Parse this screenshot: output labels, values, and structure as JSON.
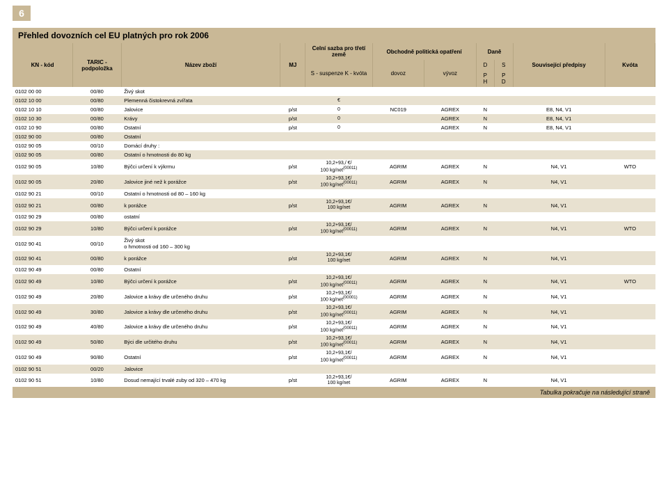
{
  "page_number": "6",
  "title": "Přehled dovozních cel EU platných pro rok 2006",
  "footer": "Tabulka pokračuje na následující straně",
  "headers": {
    "kn_kod": "KN - kód",
    "taric": "TARIC - podpoložka",
    "nazev": "Název zboží",
    "mj": "MJ",
    "sazba_group": "Celní sazba pro třetí země",
    "sazba_sub": "S - suspenze\nK - kvóta",
    "opatreni_group": "Obchodně politická opatření",
    "dovoz": "dovoz",
    "vyvoz": "vývoz",
    "dane": "Daně",
    "d": "D",
    "s": "S",
    "p1": "P",
    "p2": "P",
    "h": "H",
    "d2": "D",
    "predpisy": "Související předpisy",
    "kvota": "Kvóta"
  },
  "euro": "€",
  "rows": [
    {
      "alt": 0,
      "kn": "0102 00 00",
      "tar": "00/80",
      "naz": "Živý skot",
      "mj": "",
      "rate": "",
      "dov": "",
      "vyv": "",
      "da": "",
      "sa": "",
      "pre": "",
      "kv": ""
    },
    {
      "alt": 1,
      "kn": "0102 10 00",
      "tar": "00/80",
      "naz": "Plemenná čistokrevná zvířata",
      "mj": "",
      "rate": "€",
      "dov": "",
      "vyv": "",
      "da": "",
      "sa": "",
      "pre": "",
      "kv": ""
    },
    {
      "alt": 0,
      "kn": "0102 10 10",
      "tar": "00/80",
      "naz": "Jalovice",
      "mj": "p/st",
      "rate": "0",
      "dov": "NC019",
      "vyv": "AGREX",
      "da": "N",
      "sa": "",
      "pre": "E8, N4, V1",
      "kv": ""
    },
    {
      "alt": 1,
      "kn": "0102 10 30",
      "tar": "00/80",
      "naz": "Krávy",
      "mj": "p/st",
      "rate": "0",
      "dov": "",
      "vyv": "AGREX",
      "da": "N",
      "sa": "",
      "pre": "E8, N4, V1",
      "kv": ""
    },
    {
      "alt": 0,
      "kn": "0102 10 90",
      "tar": "00/80",
      "naz": "Ostatní",
      "mj": "p/st",
      "rate": "0",
      "dov": "",
      "vyv": "AGREX",
      "da": "N",
      "sa": "",
      "pre": "E8, N4, V1",
      "kv": ""
    },
    {
      "alt": 1,
      "kn": "0102 90 00",
      "tar": "00/80",
      "naz": "Ostatní",
      "mj": "",
      "rate": "",
      "dov": "",
      "vyv": "",
      "da": "",
      "sa": "",
      "pre": "",
      "kv": ""
    },
    {
      "alt": 0,
      "kn": "0102 90 05",
      "tar": "00/10",
      "naz": "Domácí druhy :",
      "mj": "",
      "rate": "",
      "dov": "",
      "vyv": "",
      "da": "",
      "sa": "",
      "pre": "",
      "kv": ""
    },
    {
      "alt": 1,
      "kn": "0102 90 05",
      "tar": "00/80",
      "naz": "Ostatní o hmotnosti do 80 kg",
      "mj": "",
      "rate": "",
      "dov": "",
      "vyv": "",
      "da": "",
      "sa": "",
      "pre": "",
      "kv": ""
    },
    {
      "alt": 0,
      "kn": "0102 90 05",
      "tar": "10/80",
      "naz": "Býčci určení k výkrmu",
      "mj": "p/st",
      "rate": "10,2+93,/ €/\n100 kg/net(00011)",
      "dov": "AGRIM",
      "vyv": "AGREX",
      "da": "N",
      "sa": "",
      "pre": "N4, V1",
      "kv": "WTO"
    },
    {
      "alt": 1,
      "kn": "0102 90 05",
      "tar": "20/80",
      "naz": "Jalovice jiné než k porážce",
      "mj": "p/st",
      "rate": "10,2+93,1€/\n100 kg/net(00011)",
      "dov": "AGRIM",
      "vyv": "AGREX",
      "da": "N",
      "sa": "",
      "pre": "N4, V1",
      "kv": ""
    },
    {
      "alt": 0,
      "kn": "0102 90 21",
      "tar": "00/10",
      "naz": "Ostatní o hmotnosti od 80 – 160 kg",
      "mj": "",
      "rate": "",
      "dov": "",
      "vyv": "",
      "da": "",
      "sa": "",
      "pre": "",
      "kv": ""
    },
    {
      "alt": 1,
      "kn": "0102 90 21",
      "tar": "00/80",
      "naz": "k porážce",
      "mj": "p/st",
      "rate": "10,2+93,1€/\n100 kg/net",
      "dov": "AGRIM",
      "vyv": "AGREX",
      "da": "N",
      "sa": "",
      "pre": "N4, V1",
      "kv": ""
    },
    {
      "alt": 0,
      "kn": "0102 90 29",
      "tar": "00/80",
      "naz": "ostatní",
      "mj": "",
      "rate": "",
      "dov": "",
      "vyv": "",
      "da": "",
      "sa": "",
      "pre": "",
      "kv": ""
    },
    {
      "alt": 1,
      "kn": "0102 90 29",
      "tar": "10/80",
      "naz": "Býčci určení k porážce",
      "mj": "p/st",
      "rate": "10,2+93,1€/\n100 kg/net(00011)",
      "dov": "AGRIM",
      "vyv": "AGREX",
      "da": "N",
      "sa": "",
      "pre": "N4, V1",
      "kv": "WTO"
    },
    {
      "alt": 0,
      "kn": "0102 90 41",
      "tar": "00/10",
      "naz": "Živý skot\no hmotnosti od 160 – 300 kg",
      "mj": "",
      "rate": "",
      "dov": "",
      "vyv": "",
      "da": "",
      "sa": "",
      "pre": "",
      "kv": ""
    },
    {
      "alt": 1,
      "kn": "0102 90 41",
      "tar": "00/80",
      "naz": "k porážce",
      "mj": "p/st",
      "rate": "10,2+93,1€/\n100 kg/net",
      "dov": "AGRIM",
      "vyv": "AGREX",
      "da": "N",
      "sa": "",
      "pre": "N4, V1",
      "kv": ""
    },
    {
      "alt": 0,
      "kn": "0102 90 49",
      "tar": "00/80",
      "naz": "Ostatní",
      "mj": "",
      "rate": "",
      "dov": "",
      "vyv": "",
      "da": "",
      "sa": "",
      "pre": "",
      "kv": ""
    },
    {
      "alt": 1,
      "kn": "0102 90 49",
      "tar": "10/80",
      "naz": "Býčci určení k porážce",
      "mj": "p/st",
      "rate": "10,2+93,1€/\n100 kg/net(00011)",
      "dov": "AGRIM",
      "vyv": "AGREX",
      "da": "N",
      "sa": "",
      "pre": "N4, V1",
      "kv": "WTO"
    },
    {
      "alt": 0,
      "kn": "0102 90 49",
      "tar": "20/80",
      "naz": "Jalovice a krávy dle určeného druhu",
      "mj": "p/st",
      "rate": "10,2+93,1€/\n100 kg/net(00001)",
      "dov": "AGRIM",
      "vyv": "AGREX",
      "da": "N",
      "sa": "",
      "pre": "N4, V1",
      "kv": ""
    },
    {
      "alt": 1,
      "kn": "0102 90 49",
      "tar": "30/80",
      "naz": "Jalovice a krávy dle určeného druhu",
      "mj": "p/st",
      "rate": "10,2+93,1€/\n100 kg/net(00011)",
      "dov": "AGRIM",
      "vyv": "AGREX",
      "da": "N",
      "sa": "",
      "pre": "N4, V1",
      "kv": ""
    },
    {
      "alt": 0,
      "kn": "0102 90 49",
      "tar": "40/80",
      "naz": "Jalovice a krávy dle určeného druhu",
      "mj": "p/st",
      "rate": "10,2+93,1€/\n100 kg/net(00011)",
      "dov": "AGRIM",
      "vyv": "AGREX",
      "da": "N",
      "sa": "",
      "pre": "N4, V1",
      "kv": ""
    },
    {
      "alt": 1,
      "kn": "0102 90 49",
      "tar": "50/80",
      "naz": "Býci dle určitého druhu",
      "mj": "p/st",
      "rate": "10,2+93,1€/\n100 kg/net(00011)",
      "dov": "AGRIM",
      "vyv": "AGREX",
      "da": "N",
      "sa": "",
      "pre": "N4, V1",
      "kv": ""
    },
    {
      "alt": 0,
      "kn": "0102 90 49",
      "tar": "90/80",
      "naz": "Ostatní",
      "mj": "p/st",
      "rate": "10,2+93,1€/\n100 kg/net(00011)",
      "dov": "AGRIM",
      "vyv": "AGREX",
      "da": "N",
      "sa": "",
      "pre": "N4, V1",
      "kv": ""
    },
    {
      "alt": 1,
      "kn": "0102 90 51",
      "tar": "00/20",
      "naz": "Jalovice",
      "mj": "",
      "rate": "",
      "dov": "",
      "vyv": "",
      "da": "",
      "sa": "",
      "pre": "",
      "kv": ""
    },
    {
      "alt": 0,
      "kn": "0102 90 51",
      "tar": "10/80",
      "naz": "Dosud nemající trvalé zuby od 320 – 470 kg",
      "mj": "p/st",
      "rate": "10,2+93,1€/\n100 kg/net",
      "dov": "AGRIM",
      "vyv": "AGREX",
      "da": "N",
      "sa": "",
      "pre": "N4, V1",
      "kv": ""
    }
  ],
  "col_widths": [
    "72",
    "58",
    "190",
    "30",
    "80",
    "62",
    "62",
    "22",
    "22",
    "110",
    "60"
  ],
  "colors": {
    "header_bg": "#c9b896",
    "alt_row_bg": "#e8e1d0",
    "white": "#ffffff"
  }
}
